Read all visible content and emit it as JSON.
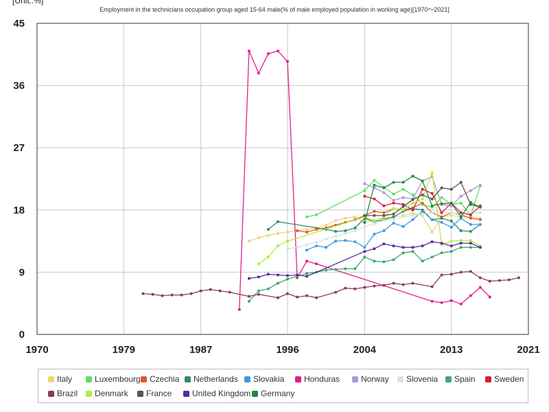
{
  "unit_label": "[Unit:.%]",
  "title": "Employment in the technicians occupation group aged 15-64 male(% of male employed population in working age)[1970～2021]",
  "chart_data": {
    "type": "line",
    "title": "Employment in the technicians occupation group aged 15-64 male(% of male employed population in working age)[1970～2021]",
    "unit": "[Unit:.%]",
    "xlim": [
      1970,
      2021
    ],
    "ylim": [
      0,
      45
    ],
    "x_ticks": [
      1970,
      1979,
      1987,
      1996,
      2004,
      2013,
      2021
    ],
    "y_ticks": [
      0,
      9,
      18,
      27,
      36,
      45
    ],
    "grid": true,
    "legend_position": "bottom",
    "series": [
      {
        "name": "Italy",
        "color": "#f2d27a",
        "points": [
          [
            1992,
            13.5
          ],
          [
            1993,
            14.0
          ],
          [
            1994,
            14.3
          ],
          [
            1995,
            14.6
          ],
          [
            1996,
            14.8
          ],
          [
            1997,
            15.0
          ],
          [
            1998,
            15.2
          ],
          [
            1999,
            15.4
          ],
          [
            2000,
            15.8
          ],
          [
            2001,
            16.5
          ],
          [
            2002,
            16.8
          ],
          [
            2003,
            17.0
          ],
          [
            2004,
            16.2
          ],
          [
            2005,
            16.5
          ],
          [
            2006,
            16.8
          ],
          [
            2007,
            17.0
          ],
          [
            2008,
            17.2
          ],
          [
            2009,
            17.5
          ],
          [
            2010,
            17.2
          ],
          [
            2011,
            14.8
          ],
          [
            2012,
            17.0
          ],
          [
            2013,
            17.2
          ],
          [
            2014,
            17.0
          ],
          [
            2015,
            17.0
          ],
          [
            2016,
            16.8
          ]
        ]
      },
      {
        "name": "Luxembourg",
        "color": "#5de05d",
        "points": [
          [
            1998,
            17.0
          ],
          [
            1999,
            17.3
          ],
          [
            2004,
            20.8
          ],
          [
            2005,
            22.3
          ],
          [
            2006,
            21.3
          ],
          [
            2007,
            20.3
          ],
          [
            2008,
            21.0
          ],
          [
            2009,
            20.2
          ],
          [
            2010,
            18.8
          ],
          [
            2011,
            18.4
          ],
          [
            2012,
            19.8
          ],
          [
            2013,
            18.8
          ],
          [
            2014,
            19.0
          ],
          [
            2015,
            17.2
          ],
          [
            2016,
            21.5
          ]
        ]
      },
      {
        "name": "Czechia",
        "color": "#e0582a",
        "points": [
          [
            1997,
            15.0
          ],
          [
            1998,
            14.8
          ],
          [
            1999,
            15.2
          ],
          [
            2000,
            15.4
          ],
          [
            2001,
            15.8
          ],
          [
            2002,
            16.2
          ],
          [
            2003,
            16.6
          ],
          [
            2004,
            17.2
          ],
          [
            2005,
            17.8
          ],
          [
            2006,
            17.6
          ],
          [
            2007,
            18.2
          ],
          [
            2008,
            18.0
          ],
          [
            2009,
            18.3
          ],
          [
            2010,
            19.0
          ],
          [
            2011,
            17.6
          ],
          [
            2012,
            17.0
          ],
          [
            2013,
            17.6
          ],
          [
            2014,
            17.3
          ],
          [
            2015,
            16.8
          ],
          [
            2016,
            16.6
          ]
        ]
      },
      {
        "name": "Netherlands",
        "color": "#2f8a6e",
        "points": [
          [
            1994,
            15.2
          ],
          [
            1995,
            16.3
          ],
          [
            2000,
            15.2
          ],
          [
            2001,
            14.9
          ],
          [
            2002,
            15.0
          ],
          [
            2003,
            15.4
          ],
          [
            2004,
            16.8
          ],
          [
            2005,
            16.3
          ],
          [
            2006,
            16.6
          ],
          [
            2007,
            17.0
          ],
          [
            2008,
            17.8
          ],
          [
            2009,
            18.2
          ],
          [
            2010,
            18.0
          ],
          [
            2011,
            16.6
          ],
          [
            2012,
            16.8
          ],
          [
            2013,
            16.4
          ],
          [
            2014,
            15.0
          ],
          [
            2015,
            14.9
          ],
          [
            2016,
            15.9
          ]
        ]
      },
      {
        "name": "Slovakia",
        "color": "#3d9ae0",
        "points": [
          [
            1998,
            12.2
          ],
          [
            1999,
            12.8
          ],
          [
            2000,
            12.6
          ],
          [
            2001,
            13.5
          ],
          [
            2002,
            13.6
          ],
          [
            2003,
            13.4
          ],
          [
            2004,
            12.6
          ],
          [
            2005,
            14.5
          ],
          [
            2006,
            15.0
          ],
          [
            2007,
            16.1
          ],
          [
            2008,
            15.6
          ],
          [
            2009,
            16.6
          ],
          [
            2010,
            17.8
          ],
          [
            2011,
            16.6
          ],
          [
            2012,
            16.2
          ],
          [
            2013,
            15.5
          ],
          [
            2014,
            16.8
          ],
          [
            2015,
            15.9
          ],
          [
            2016,
            15.9
          ]
        ]
      },
      {
        "name": "Honduras",
        "color": "#e21e8c",
        "points": [
          [
            1991,
            3.6
          ],
          [
            1992,
            41.0
          ],
          [
            1993,
            37.8
          ],
          [
            1994,
            40.6
          ],
          [
            1995,
            41.0
          ],
          [
            1996,
            39.5
          ],
          [
            1997,
            8.2
          ],
          [
            1998,
            10.6
          ],
          [
            1999,
            10.2
          ],
          [
            2011,
            4.8
          ],
          [
            2012,
            4.6
          ],
          [
            2013,
            4.9
          ],
          [
            2014,
            4.4
          ],
          [
            2015,
            5.6
          ],
          [
            2016,
            6.8
          ],
          [
            2017,
            5.4
          ]
        ]
      },
      {
        "name": "Norway",
        "color": "#a89ad6",
        "points": [
          [
            2004,
            21.8
          ],
          [
            2005,
            21.2
          ],
          [
            2006,
            20.5
          ],
          [
            2007,
            19.4
          ],
          [
            2008,
            19.8
          ],
          [
            2009,
            19.6
          ],
          [
            2010,
            22.2
          ],
          [
            2011,
            22.8
          ],
          [
            2012,
            18.8
          ],
          [
            2013,
            18.6
          ],
          [
            2014,
            20.0
          ],
          [
            2015,
            20.8
          ],
          [
            2016,
            21.6
          ]
        ]
      },
      {
        "name": "Slovenia",
        "color": "#cfe8df",
        "points": [
          [
            1996,
            12.4
          ],
          [
            1997,
            12.6
          ],
          [
            1998,
            13.0
          ],
          [
            1999,
            13.3
          ],
          [
            2000,
            13.8
          ],
          [
            2001,
            14.2
          ],
          [
            2002,
            14.6
          ],
          [
            2003,
            15.0
          ],
          [
            2004,
            15.6
          ],
          [
            2005,
            16.0
          ],
          [
            2006,
            16.5
          ],
          [
            2007,
            16.6
          ],
          [
            2008,
            17.0
          ],
          [
            2009,
            17.2
          ],
          [
            2010,
            17.4
          ],
          [
            2011,
            17.6
          ],
          [
            2012,
            17.8
          ],
          [
            2013,
            17.6
          ],
          [
            2014,
            17.4
          ],
          [
            2015,
            17.5
          ],
          [
            2016,
            17.6
          ]
        ]
      },
      {
        "name": "Spain",
        "color": "#3aa86e",
        "points": [
          [
            1992,
            4.8
          ],
          [
            1993,
            6.3
          ],
          [
            1994,
            6.6
          ],
          [
            1995,
            7.4
          ],
          [
            1996,
            8.0
          ],
          [
            1997,
            8.4
          ],
          [
            1998,
            8.8
          ],
          [
            1999,
            9.0
          ],
          [
            2000,
            9.3
          ],
          [
            2001,
            9.4
          ],
          [
            2002,
            9.5
          ],
          [
            2003,
            9.5
          ],
          [
            2004,
            11.2
          ],
          [
            2005,
            10.6
          ],
          [
            2006,
            10.5
          ],
          [
            2007,
            10.8
          ],
          [
            2008,
            11.8
          ],
          [
            2009,
            12.0
          ],
          [
            2010,
            10.6
          ],
          [
            2011,
            11.2
          ],
          [
            2012,
            11.8
          ],
          [
            2013,
            12.0
          ],
          [
            2014,
            12.6
          ],
          [
            2015,
            12.6
          ],
          [
            2016,
            12.6
          ]
        ]
      },
      {
        "name": "Sweden",
        "color": "#d0213c",
        "points": [
          [
            2004,
            20.0
          ],
          [
            2005,
            19.6
          ],
          [
            2006,
            18.6
          ],
          [
            2007,
            19.0
          ],
          [
            2008,
            18.8
          ],
          [
            2009,
            18.0
          ],
          [
            2010,
            21.0
          ],
          [
            2011,
            20.4
          ],
          [
            2012,
            17.6
          ],
          [
            2013,
            19.0
          ],
          [
            2014,
            17.6
          ],
          [
            2015,
            17.3
          ],
          [
            2016,
            18.6
          ]
        ]
      },
      {
        "name": "Brazil",
        "color": "#8c3a5c",
        "points": [
          [
            1981,
            5.9
          ],
          [
            1982,
            5.8
          ],
          [
            1983,
            5.6
          ],
          [
            1984,
            5.7
          ],
          [
            1985,
            5.7
          ],
          [
            1986,
            5.9
          ],
          [
            1987,
            6.3
          ],
          [
            1988,
            6.5
          ],
          [
            1989,
            6.3
          ],
          [
            1990,
            6.1
          ],
          [
            1992,
            5.5
          ],
          [
            1993,
            5.8
          ],
          [
            1995,
            5.3
          ],
          [
            1996,
            5.9
          ],
          [
            1997,
            5.4
          ],
          [
            1998,
            5.6
          ],
          [
            1999,
            5.3
          ],
          [
            2001,
            6.1
          ],
          [
            2002,
            6.7
          ],
          [
            2003,
            6.6
          ],
          [
            2004,
            6.8
          ],
          [
            2005,
            7.0
          ],
          [
            2006,
            7.1
          ],
          [
            2007,
            7.4
          ],
          [
            2008,
            7.2
          ],
          [
            2009,
            7.4
          ],
          [
            2011,
            6.9
          ],
          [
            2012,
            8.6
          ],
          [
            2013,
            8.7
          ],
          [
            2014,
            9.0
          ],
          [
            2015,
            9.1
          ],
          [
            2016,
            8.2
          ],
          [
            2017,
            7.7
          ],
          [
            2018,
            7.8
          ],
          [
            2019,
            7.9
          ],
          [
            2020,
            8.2
          ]
        ]
      },
      {
        "name": "Denmark",
        "color": "#aef03c",
        "points": [
          [
            1993,
            10.2
          ],
          [
            1994,
            11.2
          ],
          [
            1995,
            12.8
          ],
          [
            1996,
            13.5
          ],
          [
            2004,
            17.0
          ],
          [
            2005,
            16.4
          ],
          [
            2006,
            17.0
          ],
          [
            2007,
            18.2
          ],
          [
            2008,
            18.0
          ],
          [
            2009,
            19.0
          ],
          [
            2010,
            19.6
          ],
          [
            2011,
            23.4
          ],
          [
            2012,
            13.0
          ],
          [
            2013,
            13.5
          ],
          [
            2014,
            13.6
          ],
          [
            2015,
            13.6
          ],
          [
            2016,
            12.8
          ]
        ]
      },
      {
        "name": "France",
        "color": "#555555",
        "points": [
          [
            2004,
            17.2
          ],
          [
            2005,
            17.2
          ],
          [
            2006,
            17.2
          ],
          [
            2007,
            17.4
          ],
          [
            2008,
            18.5
          ],
          [
            2009,
            19.5
          ],
          [
            2010,
            20.2
          ],
          [
            2011,
            19.6
          ],
          [
            2012,
            21.2
          ],
          [
            2013,
            21.0
          ],
          [
            2014,
            22.0
          ],
          [
            2015,
            18.8
          ],
          [
            2016,
            18.4
          ]
        ]
      },
      {
        "name": "United Kingdom",
        "color": "#5a2a9c",
        "points": [
          [
            1992,
            8.1
          ],
          [
            1993,
            8.3
          ],
          [
            1994,
            8.7
          ],
          [
            1995,
            8.6
          ],
          [
            1996,
            8.5
          ],
          [
            1997,
            8.6
          ],
          [
            1998,
            8.4
          ],
          [
            2004,
            12.0
          ],
          [
            2005,
            12.4
          ],
          [
            2006,
            13.1
          ],
          [
            2007,
            12.8
          ],
          [
            2008,
            12.6
          ],
          [
            2009,
            12.6
          ],
          [
            2010,
            12.8
          ],
          [
            2011,
            13.4
          ],
          [
            2012,
            13.2
          ],
          [
            2013,
            12.8
          ],
          [
            2014,
            13.2
          ],
          [
            2015,
            13.2
          ],
          [
            2016,
            12.6
          ]
        ]
      },
      {
        "name": "Germany",
        "color": "#1e8a3c",
        "points": [
          [
            2004,
            16.2
          ],
          [
            2005,
            21.6
          ],
          [
            2006,
            21.2
          ],
          [
            2007,
            22.0
          ],
          [
            2008,
            22.0
          ],
          [
            2009,
            22.9
          ],
          [
            2010,
            22.2
          ],
          [
            2011,
            18.6
          ],
          [
            2012,
            18.9
          ],
          [
            2013,
            19.0
          ],
          [
            2014,
            17.0
          ],
          [
            2015,
            19.1
          ],
          [
            2016,
            18.4
          ]
        ]
      }
    ]
  }
}
